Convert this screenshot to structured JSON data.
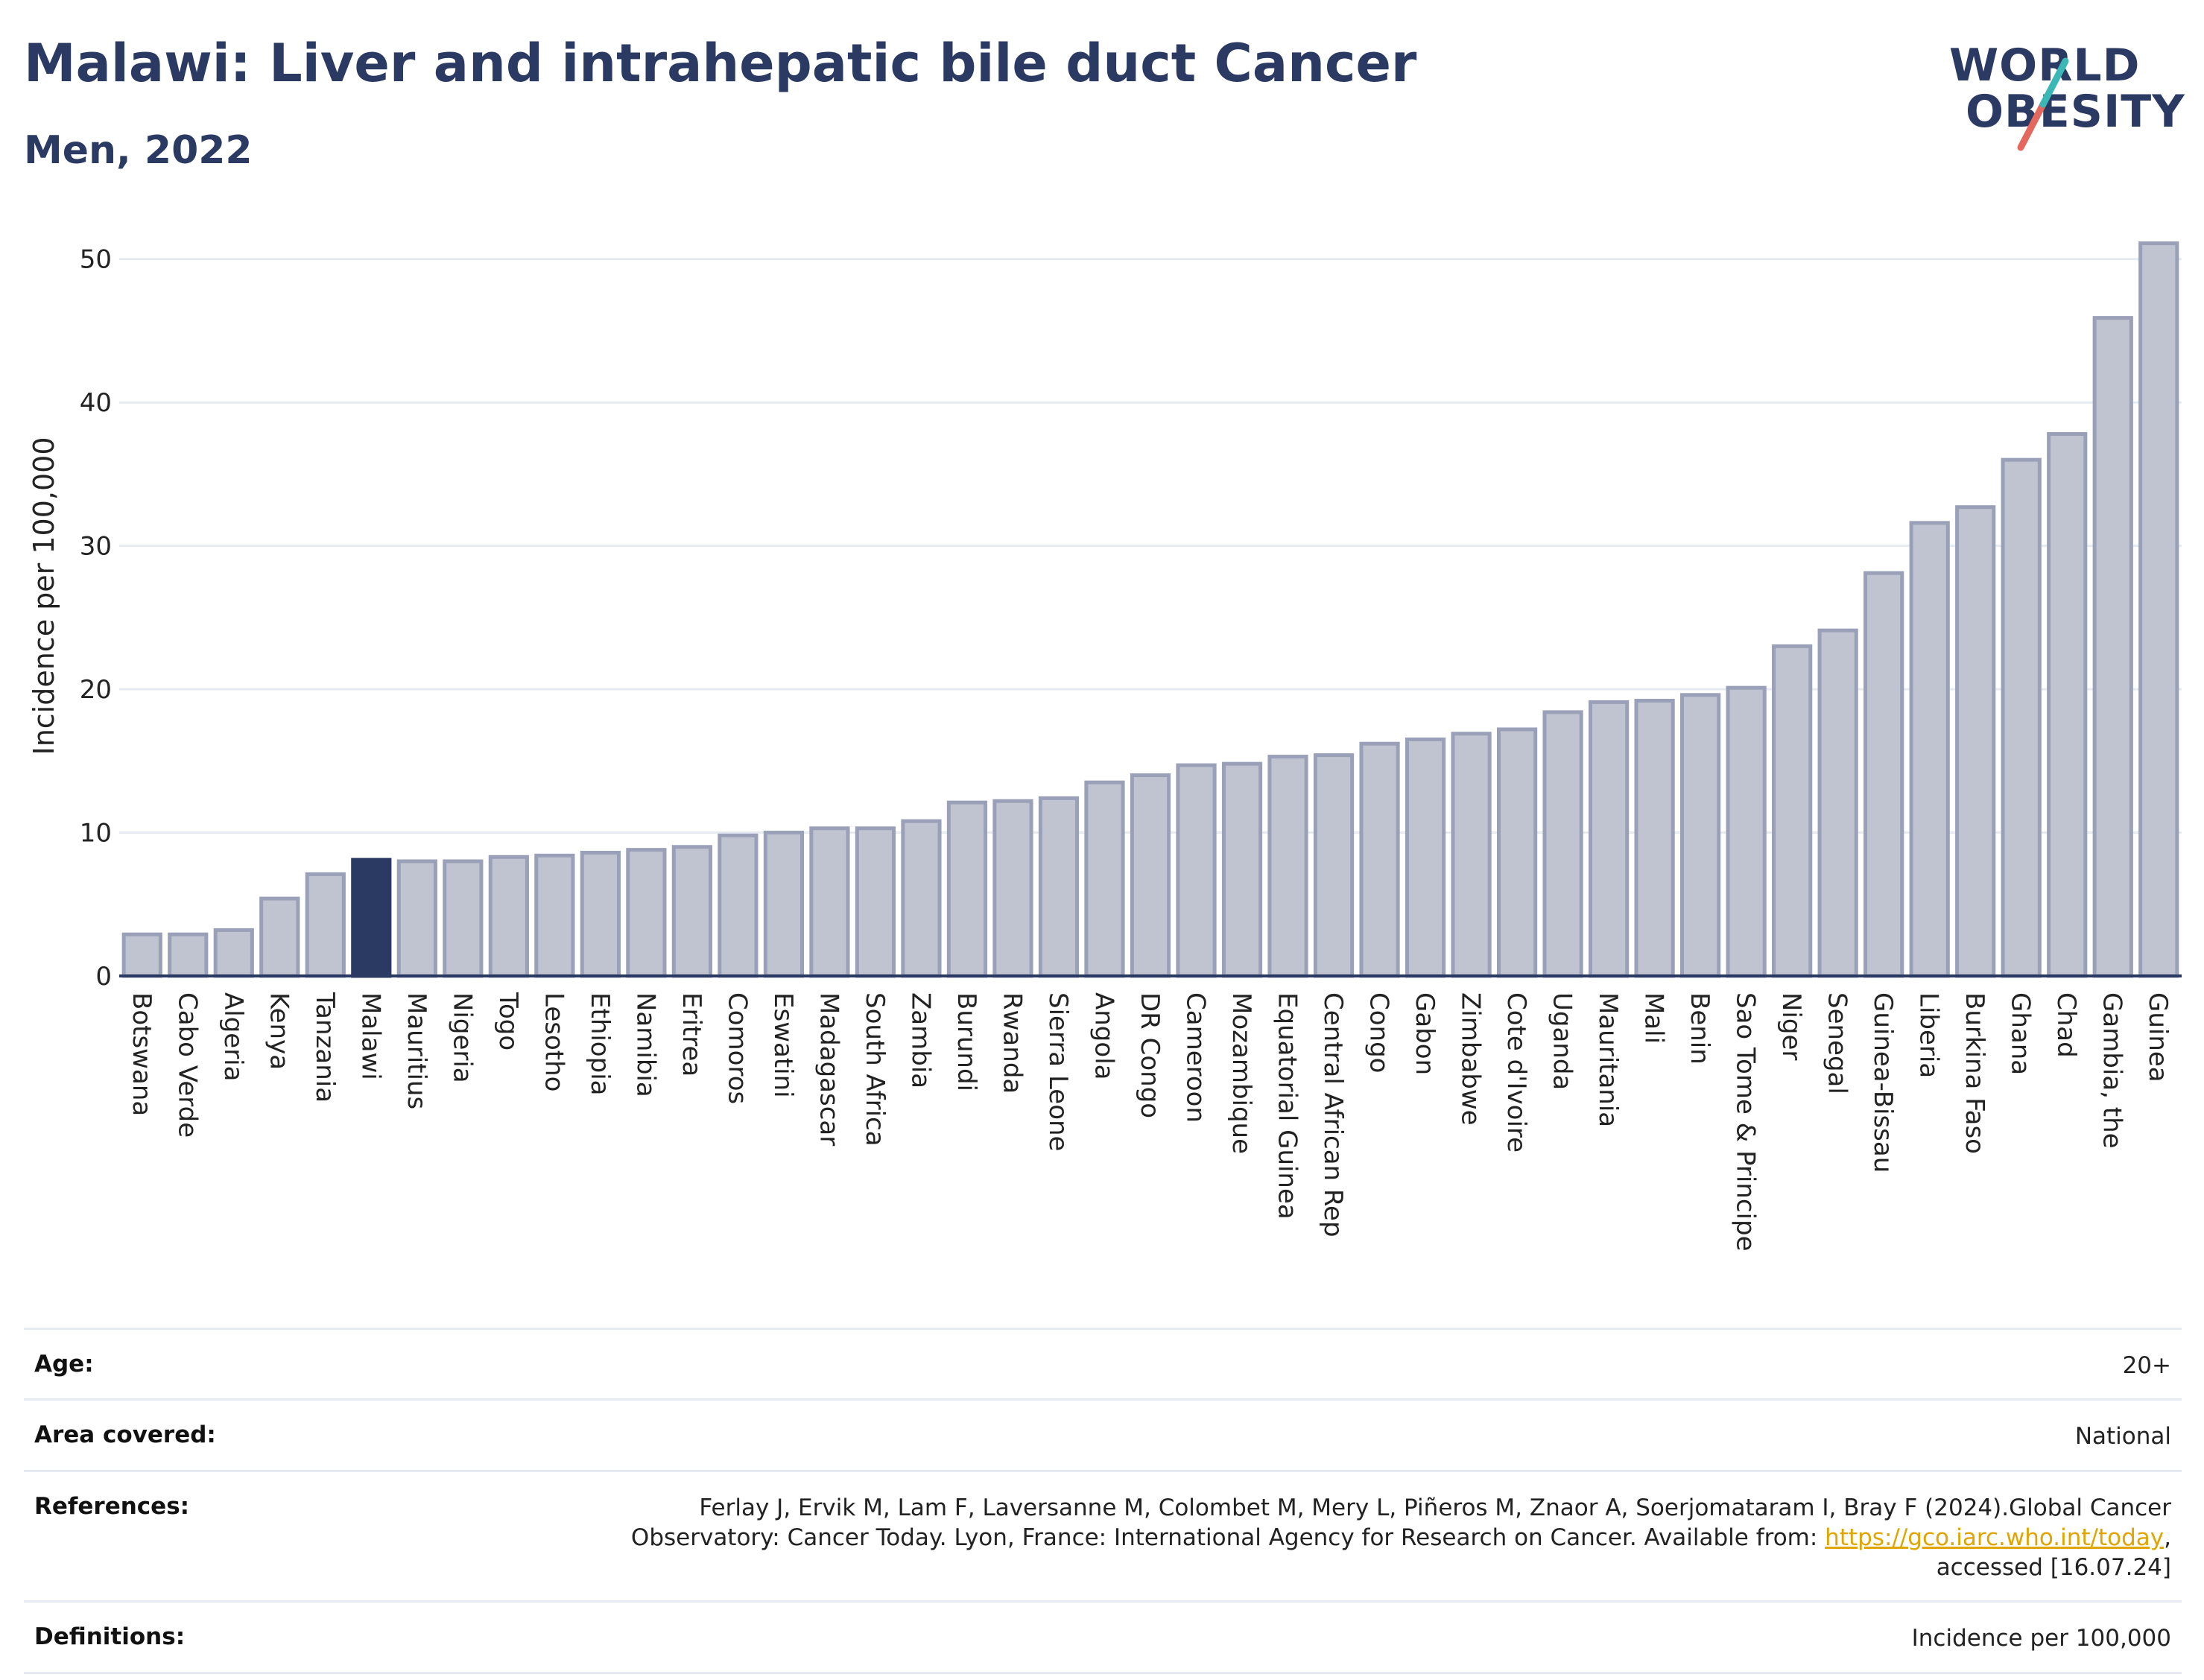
{
  "header": {
    "title": "Malawi: Liver and intrahepatic bile duct Cancer",
    "subtitle": "Men, 2022"
  },
  "logo": {
    "line1": "WORLD",
    "line2": "OBESITY",
    "colors": {
      "teal": "#3bb8b6",
      "coral": "#e4685d",
      "navy": "#2b3a63"
    }
  },
  "colors": {
    "bar": "#c0c4d0",
    "bar_border": "#9aa0b8",
    "highlight": "#2b3a63",
    "grid": "#e6ebf1",
    "axis": "#2b3a63"
  },
  "chart_data": {
    "type": "bar",
    "title": "Malawi: Liver and intrahepatic bile duct Cancer",
    "subtitle": "Men, 2022",
    "xlabel": "",
    "ylabel": "Incidence per 100,000",
    "ylim": [
      0,
      53
    ],
    "yticks": [
      0,
      10,
      20,
      30,
      40,
      50
    ],
    "grid": true,
    "highlight": "Malawi",
    "categories": [
      "Botswana",
      "Cabo Verde",
      "Algeria",
      "Kenya",
      "Tanzania",
      "Malawi",
      "Mauritius",
      "Nigeria",
      "Togo",
      "Lesotho",
      "Ethiopia",
      "Namibia",
      "Eritrea",
      "Comoros",
      "Eswatini",
      "Madagascar",
      "South Africa",
      "Zambia",
      "Burundi",
      "Rwanda",
      "Sierra Leone",
      "Angola",
      "DR Congo",
      "Cameroon",
      "Mozambique",
      "Equatorial Guinea",
      "Central African Rep",
      "Congo",
      "Gabon",
      "Zimbabwe",
      "Cote d'Ivoire",
      "Uganda",
      "Mauritania",
      "Mali",
      "Benin",
      "Sao Tome & Principe",
      "Niger",
      "Senegal",
      "Guinea-Bissau",
      "Liberia",
      "Burkina Faso",
      "Ghana",
      "Chad",
      "Gambia, the",
      "Guinea"
    ],
    "values": [
      2.9,
      2.9,
      3.2,
      5.4,
      7.1,
      8.1,
      8.0,
      8.0,
      8.3,
      8.4,
      8.6,
      8.8,
      9.0,
      9.8,
      10.0,
      10.3,
      10.3,
      10.8,
      12.1,
      12.2,
      12.4,
      13.5,
      14.0,
      14.7,
      14.8,
      15.3,
      15.4,
      16.2,
      16.5,
      16.9,
      17.2,
      18.4,
      19.1,
      19.2,
      19.6,
      20.1,
      23.0,
      24.1,
      28.1,
      31.6,
      32.7,
      36.0,
      37.8,
      45.9,
      51.1
    ]
  },
  "info": {
    "age_label": "Age:",
    "age_value": "20+",
    "area_label": "Area covered:",
    "area_value": "National",
    "references_label": "References:",
    "references_text_1": "Ferlay J, Ervik M, Lam F, Laversanne M, Colombet M, Mery L, Piñeros M, Znaor A, Soerjomataram I, Bray F (2024).Global Cancer Observatory: Cancer Today. Lyon, France: International Agency for Research on Cancer. Available from: ",
    "references_link": "https://gco.iarc.who.int/today",
    "references_text_2": ", accessed [16.07.24]",
    "definitions_label": "Definitions:",
    "definitions_value": "Incidence per 100,000"
  }
}
